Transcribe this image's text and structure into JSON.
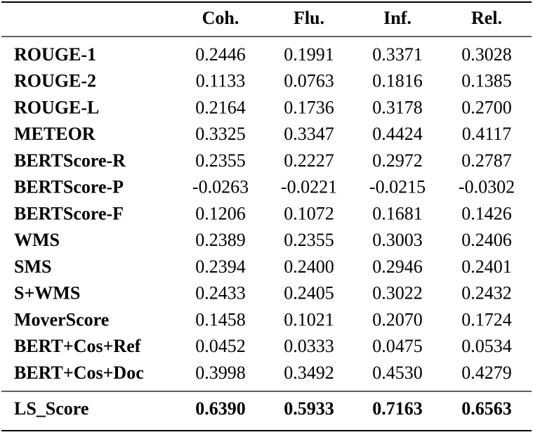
{
  "table": {
    "columns": [
      "Coh.",
      "Flu.",
      "Inf.",
      "Rel."
    ],
    "rows": [
      {
        "label": "ROUGE-1",
        "values": [
          "0.2446",
          "0.1991",
          "0.3371",
          "0.3028"
        ]
      },
      {
        "label": "ROUGE-2",
        "values": [
          "0.1133",
          "0.0763",
          "0.1816",
          "0.1385"
        ]
      },
      {
        "label": "ROUGE-L",
        "values": [
          "0.2164",
          "0.1736",
          "0.3178",
          "0.2700"
        ]
      },
      {
        "label": "METEOR",
        "values": [
          "0.3325",
          "0.3347",
          "0.4424",
          "0.4117"
        ]
      },
      {
        "label": "BERTScore-R",
        "values": [
          "0.2355",
          "0.2227",
          "0.2972",
          "0.2787"
        ]
      },
      {
        "label": "BERTScore-P",
        "values": [
          "-0.0263",
          "-0.0221",
          "-0.0215",
          "-0.0302"
        ]
      },
      {
        "label": "BERTScore-F",
        "values": [
          "0.1206",
          "0.1072",
          "0.1681",
          "0.1426"
        ]
      },
      {
        "label": "WMS",
        "values": [
          "0.2389",
          "0.2355",
          "0.3003",
          "0.2406"
        ]
      },
      {
        "label": "SMS",
        "values": [
          "0.2394",
          "0.2400",
          "0.2946",
          "0.2401"
        ]
      },
      {
        "label": "S+WMS",
        "values": [
          "0.2433",
          "0.2405",
          "0.3022",
          "0.2432"
        ]
      },
      {
        "label": "MoverScore",
        "values": [
          "0.1458",
          "0.1021",
          "0.2070",
          "0.1724"
        ]
      },
      {
        "label": "BERT+Cos+Ref",
        "values": [
          "0.0452",
          "0.0333",
          "0.0475",
          "0.0534"
        ]
      },
      {
        "label": "BERT+Cos+Doc",
        "values": [
          "0.3998",
          "0.3492",
          "0.4530",
          "0.4279"
        ]
      }
    ],
    "summary_row": {
      "label": "LS_Score",
      "values": [
        "0.6390",
        "0.5933",
        "0.7163",
        "0.6563"
      ]
    }
  }
}
